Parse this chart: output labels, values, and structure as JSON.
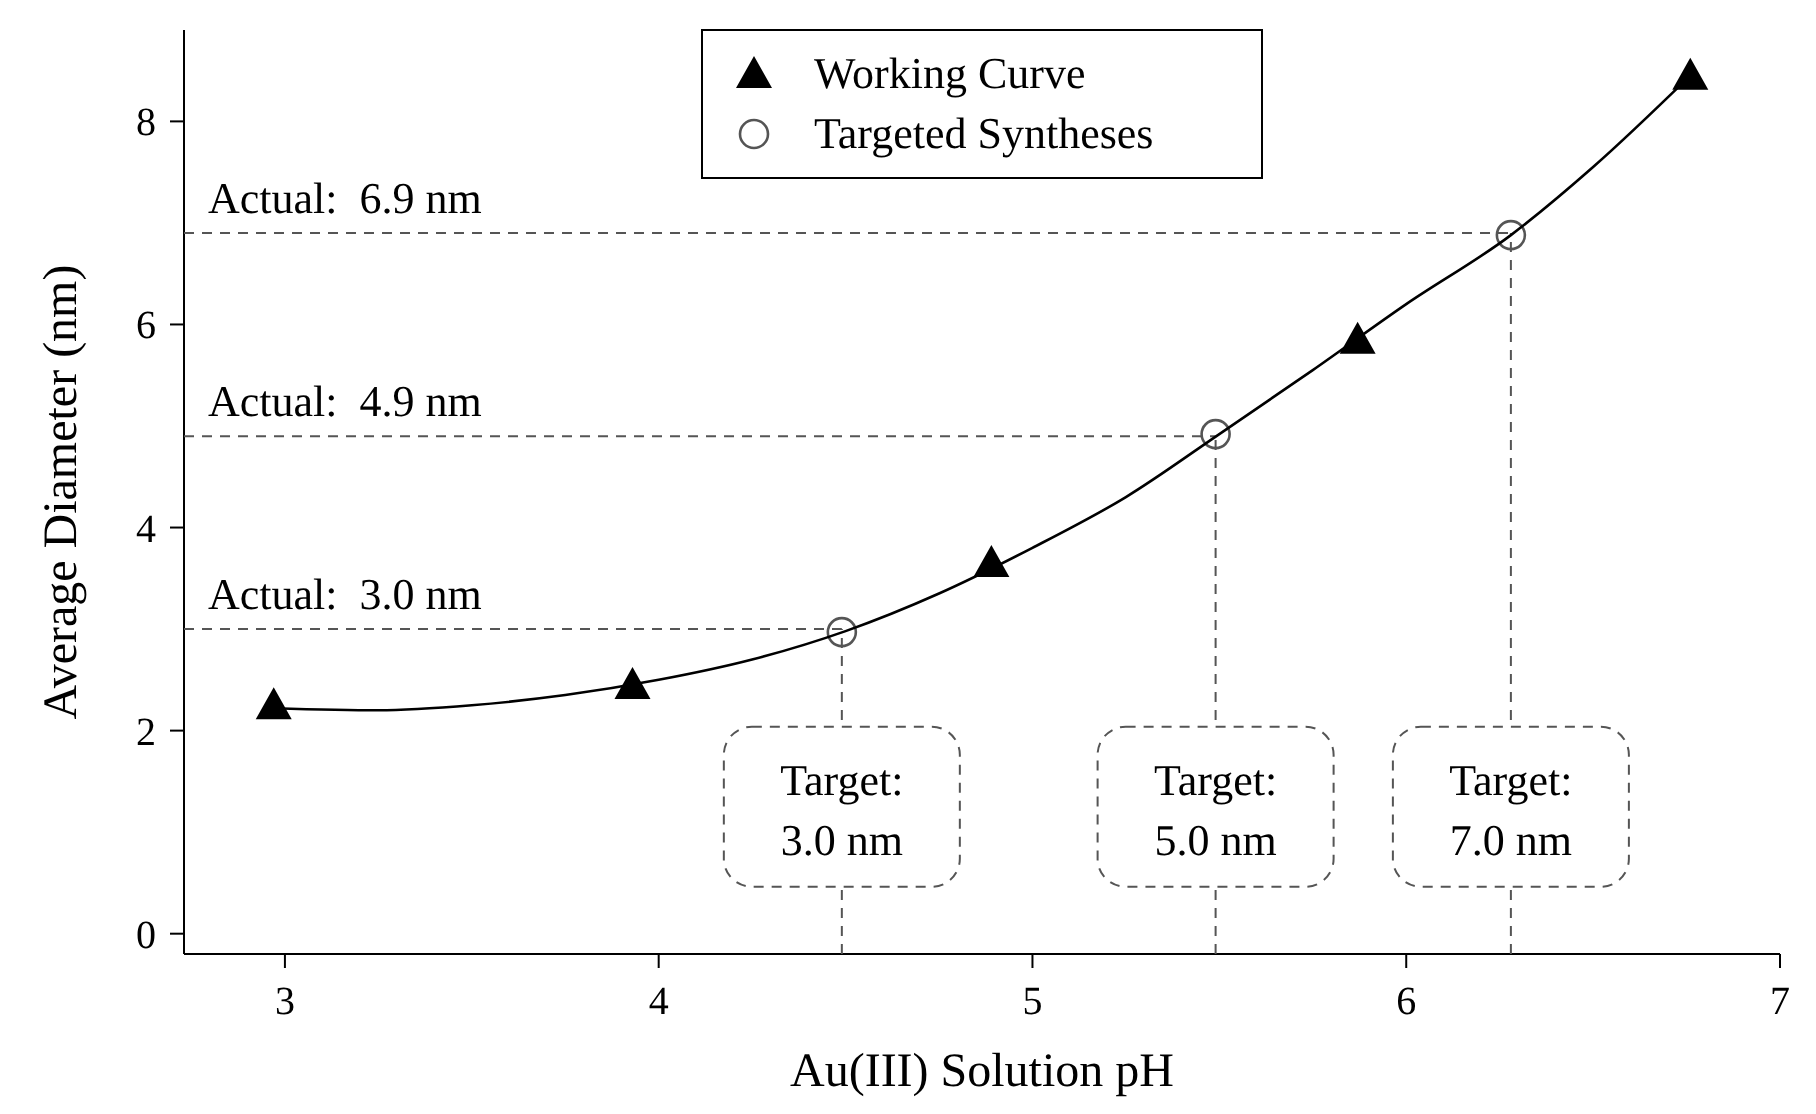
{
  "chart_data": {
    "type": "scatter",
    "xlabel": "Au(III) Solution pH",
    "ylabel": "Average Diameter (nm)",
    "xlim": [
      2.73,
      7
    ],
    "xticks": [
      3,
      4,
      5,
      6,
      7
    ],
    "ylim": [
      -0.2,
      8.9
    ],
    "yticks": [
      0,
      2,
      4,
      6,
      8
    ],
    "grid": false,
    "legend": "top",
    "series": [
      {
        "name": "Working Curve",
        "marker": "triangle",
        "color": "#000000",
        "x": [
          2.97,
          3.93,
          4.89,
          5.87,
          6.76
        ],
        "values": [
          2.25,
          2.45,
          3.65,
          5.85,
          8.45
        ]
      },
      {
        "name": "Targeted Syntheses",
        "marker": "circle",
        "color": "#555555",
        "x": [
          4.49,
          5.49,
          6.28
        ],
        "values": [
          2.97,
          4.92,
          6.88
        ]
      },
      {
        "type": "line",
        "marker": "none",
        "color": "#000000",
        "x": [
          2.97,
          3.25,
          3.5,
          3.75,
          4.0,
          4.25,
          4.5,
          4.75,
          5.0,
          5.25,
          5.5,
          5.75,
          6.0,
          6.28,
          6.5,
          6.76
        ],
        "values": [
          2.22,
          2.2,
          2.25,
          2.35,
          2.5,
          2.7,
          2.98,
          3.35,
          3.8,
          4.3,
          4.92,
          5.55,
          6.2,
          6.88,
          7.55,
          8.45
        ]
      }
    ],
    "ref_lines": [
      {
        "axis": "y",
        "value": 6.9,
        "label": "Actual:  6.9 nm",
        "color": "#555555",
        "line_style": "dashed"
      },
      {
        "axis": "y",
        "value": 4.9,
        "label": "Actual:  4.9 nm",
        "color": "#555555",
        "line_style": "dashed"
      },
      {
        "axis": "y",
        "value": 3.0,
        "label": "Actual:  3.0 nm",
        "color": "#555555",
        "line_style": "dashed"
      },
      {
        "axis": "x",
        "value": 6.28,
        "color": "#555555",
        "line_style": "dashed"
      },
      {
        "axis": "x",
        "value": 5.49,
        "color": "#555555",
        "line_style": "dashed"
      },
      {
        "axis": "x",
        "value": 4.49,
        "color": "#555555",
        "line_style": "dashed"
      }
    ],
    "annotations": [
      {
        "text": "Target:\n7.0 nm",
        "x": 6.28,
        "y": 1.25
      },
      {
        "text": "Target:\n5.0 nm",
        "x": 5.49,
        "y": 1.25
      },
      {
        "text": "Target:\n3.0 nm",
        "x": 4.49,
        "y": 1.25
      }
    ]
  }
}
